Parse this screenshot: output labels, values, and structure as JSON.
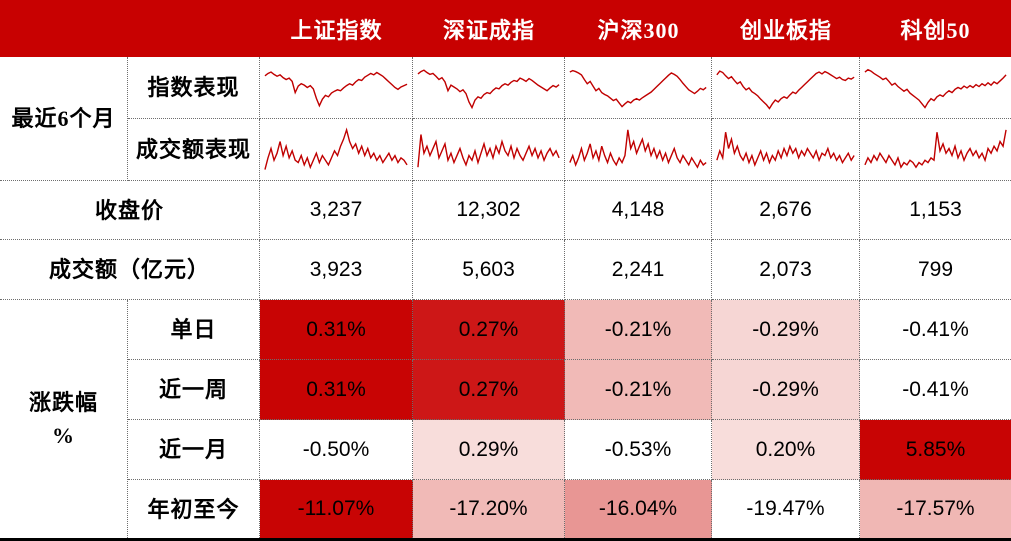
{
  "theme": {
    "header_bg": "#C80101",
    "spark_color": "#C00000",
    "grid_dot_color": "#6E6E6E",
    "bottom_border": "#000000",
    "heat_strong_red": "#C80404",
    "heat_red2": "#CD1717",
    "heat_rose": "#E89694",
    "heat_salmon": "#F1BAB7",
    "heat_light_pink": "#F6D6D4",
    "heat_lightest_pink": "#F8DDDB",
    "heat_white": "#FFFFFF"
  },
  "columns": [
    "上证指数",
    "深证成指",
    "沪深300",
    "创业板指",
    "科创50"
  ],
  "table": {
    "recent_group_label": "最近6个月",
    "index_row_label": "指数表现",
    "volume_row_label": "成交额表现",
    "close_label": "收盘价",
    "close_values": [
      "3,237",
      "12,302",
      "4,148",
      "2,676",
      "1,153"
    ],
    "turnover_label": "成交额（亿元）",
    "turnover_values": [
      "3,923",
      "5,603",
      "2,241",
      "2,073",
      "799"
    ],
    "change_group_label_line1": "涨跌幅",
    "change_group_label_line2": "%",
    "change_rows": [
      {
        "label": "单日",
        "cells": [
          {
            "v": "0.31%",
            "bg": "#C80404"
          },
          {
            "v": "0.27%",
            "bg": "#CD1717"
          },
          {
            "v": "-0.21%",
            "bg": "#F1BAB7"
          },
          {
            "v": "-0.29%",
            "bg": "#F6D6D4"
          },
          {
            "v": "-0.41%",
            "bg": "#FFFFFF"
          }
        ]
      },
      {
        "label": "近一周",
        "cells": [
          {
            "v": "0.31%",
            "bg": "#C80404"
          },
          {
            "v": "0.27%",
            "bg": "#CD1717"
          },
          {
            "v": "-0.21%",
            "bg": "#F1BAB7"
          },
          {
            "v": "-0.29%",
            "bg": "#F6D6D4"
          },
          {
            "v": "-0.41%",
            "bg": "#FFFFFF"
          }
        ]
      },
      {
        "label": "近一月",
        "cells": [
          {
            "v": "-0.50%",
            "bg": "#FFFFFF"
          },
          {
            "v": "0.29%",
            "bg": "#F8DDDB"
          },
          {
            "v": "-0.53%",
            "bg": "#FFFFFF"
          },
          {
            "v": "0.20%",
            "bg": "#F8DDDB"
          },
          {
            "v": "5.85%",
            "bg": "#C80404"
          }
        ]
      },
      {
        "label": "年初至今",
        "cells": [
          {
            "v": "-11.07%",
            "bg": "#C80404"
          },
          {
            "v": "-17.20%",
            "bg": "#F1BAB7"
          },
          {
            "v": "-16.04%",
            "bg": "#E89694"
          },
          {
            "v": "-19.47%",
            "bg": "#FFFFFF"
          },
          {
            "v": "-17.57%",
            "bg": "#F0B7B4"
          }
        ]
      }
    ]
  },
  "chart_data": {
    "type": "table",
    "period": "最近6个月",
    "columns": [
      "上证指数",
      "深证成指",
      "沪深300",
      "创业板指",
      "科创50"
    ],
    "rows": [
      {
        "label": "收盘价",
        "values": [
          3237,
          12302,
          4148,
          2676,
          1153
        ]
      },
      {
        "label": "成交额（亿元）",
        "values": [
          3923,
          5603,
          2241,
          2073,
          799
        ]
      },
      {
        "label": "涨跌幅% 单日",
        "values": [
          0.31,
          0.27,
          -0.21,
          -0.29,
          -0.41
        ]
      },
      {
        "label": "涨跌幅% 近一周",
        "values": [
          0.31,
          0.27,
          -0.21,
          -0.29,
          -0.41
        ]
      },
      {
        "label": "涨跌幅% 近一月",
        "values": [
          -0.5,
          0.29,
          -0.53,
          0.2,
          5.85
        ]
      },
      {
        "label": "涨跌幅% 年初至今",
        "values": [
          -11.07,
          -17.2,
          -16.04,
          -19.47,
          -17.57
        ]
      }
    ],
    "sparklines": {
      "note": "normalized 0-100 estimates traced from the mini-charts, 最近6个月",
      "index_performance": [
        [
          78,
          83,
          86,
          81,
          77,
          80,
          74,
          70,
          73,
          66,
          42,
          56,
          61,
          58,
          53,
          57,
          50,
          30,
          14,
          28,
          36,
          33,
          41,
          45,
          48,
          46,
          52,
          57,
          61,
          58,
          65,
          70,
          68,
          75,
          79,
          83,
          80,
          85,
          81,
          77,
          71,
          65,
          59,
          53,
          49,
          54,
          57,
          60
        ],
        [
          82,
          87,
          90,
          85,
          81,
          83,
          77,
          70,
          74,
          65,
          46,
          58,
          54,
          50,
          44,
          48,
          40,
          22,
          10,
          26,
          33,
          30,
          38,
          42,
          40,
          47,
          52,
          50,
          57,
          61,
          58,
          64,
          68,
          66,
          73,
          70,
          66,
          72,
          68,
          63,
          58,
          54,
          50,
          46,
          52,
          57,
          54,
          59
        ],
        [
          86,
          89,
          87,
          84,
          80,
          70,
          61,
          66,
          56,
          46,
          51,
          42,
          38,
          35,
          30,
          25,
          28,
          20,
          12,
          18,
          23,
          20,
          26,
          29,
          26,
          31,
          35,
          39,
          43,
          49,
          55,
          61,
          67,
          73,
          79,
          84,
          81,
          77,
          70,
          62,
          55,
          48,
          44,
          40,
          45,
          51,
          48,
          53
        ],
        [
          80,
          88,
          85,
          78,
          72,
          76,
          68,
          61,
          65,
          55,
          48,
          52,
          44,
          40,
          35,
          28,
          22,
          16,
          8,
          18,
          26,
          22,
          29,
          33,
          30,
          37,
          43,
          40,
          47,
          53,
          59,
          65,
          71,
          77,
          83,
          86,
          82,
          87,
          84,
          80,
          76,
          72,
          75,
          70,
          68,
          73,
          71,
          75
        ],
        [
          86,
          91,
          88,
          83,
          79,
          75,
          70,
          73,
          66,
          58,
          62,
          55,
          50,
          45,
          49,
          41,
          36,
          31,
          26,
          18,
          10,
          21,
          29,
          25,
          33,
          37,
          34,
          41,
          46,
          42,
          49,
          53,
          50,
          56,
          52,
          57,
          53,
          59,
          55,
          61,
          57,
          63,
          58,
          65,
          61,
          67,
          73,
          80
        ]
      ],
      "volume": [
        [
          10,
          35,
          55,
          30,
          45,
          70,
          40,
          60,
          35,
          50,
          30,
          25,
          40,
          20,
          35,
          15,
          30,
          45,
          25,
          40,
          30,
          20,
          35,
          50,
          40,
          60,
          75,
          95,
          70,
          55,
          65,
          45,
          60,
          40,
          55,
          35,
          45,
          30,
          40,
          25,
          35,
          45,
          30,
          40,
          25,
          35,
          30,
          20
        ],
        [
          15,
          85,
          45,
          60,
          40,
          55,
          70,
          35,
          50,
          65,
          30,
          45,
          25,
          40,
          55,
          35,
          20,
          40,
          30,
          50,
          25,
          45,
          65,
          40,
          55,
          35,
          60,
          45,
          70,
          50,
          40,
          60,
          35,
          55,
          40,
          30,
          45,
          60,
          40,
          55,
          35,
          50,
          30,
          45,
          55,
          40,
          50,
          35
        ],
        [
          25,
          40,
          20,
          35,
          55,
          30,
          45,
          65,
          35,
          50,
          30,
          60,
          40,
          25,
          45,
          30,
          20,
          35,
          25,
          40,
          95,
          55,
          70,
          45,
          60,
          75,
          50,
          65,
          40,
          55,
          35,
          50,
          30,
          45,
          25,
          40,
          55,
          35,
          25,
          40,
          30,
          20,
          35,
          25,
          15,
          30,
          20,
          25
        ],
        [
          30,
          50,
          35,
          90,
          55,
          75,
          45,
          60,
          40,
          30,
          45,
          25,
          40,
          20,
          35,
          50,
          30,
          45,
          25,
          40,
          30,
          50,
          35,
          55,
          40,
          60,
          45,
          55,
          35,
          50,
          40,
          55,
          45,
          35,
          50,
          30,
          45,
          40,
          55,
          35,
          45,
          30,
          40,
          25,
          35,
          45,
          30,
          40
        ],
        [
          20,
          35,
          25,
          40,
          30,
          45,
          35,
          25,
          40,
          30,
          20,
          35,
          15,
          25,
          20,
          30,
          25,
          15,
          25,
          20,
          30,
          25,
          35,
          30,
          90,
          50,
          65,
          45,
          55,
          40,
          60,
          35,
          50,
          30,
          45,
          55,
          40,
          50,
          35,
          45,
          30,
          55,
          45,
          60,
          50,
          70,
          60,
          95
        ]
      ]
    }
  }
}
